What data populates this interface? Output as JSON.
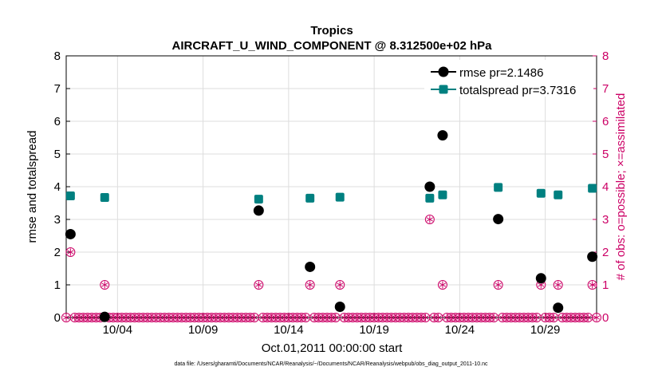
{
  "chart_data": {
    "type": "scatter",
    "title": "Tropics",
    "subtitle": "AIRCRAFT_U_WIND_COMPONENT @ 8.312500e+02 hPa",
    "xlabel": "Oct.01,2011 00:00:00 start",
    "ylabel": "rmse and totalspread",
    "y2label": "# of obs: o=possible; ×=assimilated",
    "xlim": [
      0.5,
      31.5
    ],
    "ylim": [
      0,
      8
    ],
    "y2lim": [
      0,
      8
    ],
    "xticks": [
      {
        "x": 3.5,
        "label": "10/04"
      },
      {
        "x": 8.5,
        "label": "10/09"
      },
      {
        "x": 13.5,
        "label": "10/14"
      },
      {
        "x": 18.5,
        "label": "10/19"
      },
      {
        "x": 23.5,
        "label": "10/24"
      },
      {
        "x": 28.5,
        "label": "10/29"
      }
    ],
    "yticks": [
      0,
      1,
      2,
      3,
      4,
      5,
      6,
      7,
      8
    ],
    "y2ticks": [
      0,
      1,
      2,
      3,
      4,
      5,
      6,
      7,
      8
    ],
    "series": [
      {
        "name": "rmse",
        "legend_label": "rmse pr=2.1486",
        "color": "#000000",
        "marker": "circle",
        "points": [
          [
            0.75,
            2.55
          ],
          [
            2.75,
            0.02
          ],
          [
            11.75,
            3.27
          ],
          [
            14.75,
            1.55
          ],
          [
            16.5,
            0.33
          ],
          [
            21.75,
            4.0
          ],
          [
            22.5,
            5.57
          ],
          [
            25.75,
            3.01
          ],
          [
            28.25,
            1.2
          ],
          [
            29.25,
            0.3
          ],
          [
            31.25,
            1.86
          ]
        ]
      },
      {
        "name": "totalspread",
        "legend_label": "totalspread pr=3.7316",
        "color": "#008080",
        "marker": "square",
        "points": [
          [
            0.75,
            3.72
          ],
          [
            2.75,
            3.67
          ],
          [
            11.75,
            3.62
          ],
          [
            14.75,
            3.65
          ],
          [
            16.5,
            3.68
          ],
          [
            21.75,
            3.65
          ],
          [
            22.5,
            3.75
          ],
          [
            25.75,
            3.98
          ],
          [
            28.25,
            3.8
          ],
          [
            29.25,
            3.75
          ],
          [
            31.25,
            3.95
          ]
        ]
      },
      {
        "name": "obs_possible",
        "color": "#cc0066",
        "marker": "open-circle",
        "axis": "right",
        "x_start": 0.5,
        "x_step": 0.25,
        "count": 125,
        "values_nonzero": [
          [
            0.75,
            2
          ],
          [
            2.75,
            1
          ],
          [
            11.75,
            1
          ],
          [
            14.75,
            1
          ],
          [
            16.5,
            1
          ],
          [
            21.75,
            3
          ],
          [
            22.5,
            1
          ],
          [
            25.75,
            1
          ],
          [
            28.25,
            1
          ],
          [
            29.25,
            1
          ],
          [
            31.25,
            1
          ]
        ]
      },
      {
        "name": "obs_assimilated",
        "color": "#cc0066",
        "marker": "asterisk",
        "axis": "right",
        "same_as": "obs_possible"
      }
    ],
    "legend_position": "top-right",
    "footnote": "data file: /Users/gharamti/Documents/NCAR/Reanalysis/~/Documents/NCAR/Reanalysis/webpub/obs_diag_output_2011-10.nc"
  },
  "colors": {
    "left_axis": "#000000",
    "right_axis": "#cc0066",
    "grid": "#dddddd",
    "rmse": "#000000",
    "totalspread": "#008080",
    "obs": "#cc0066"
  }
}
